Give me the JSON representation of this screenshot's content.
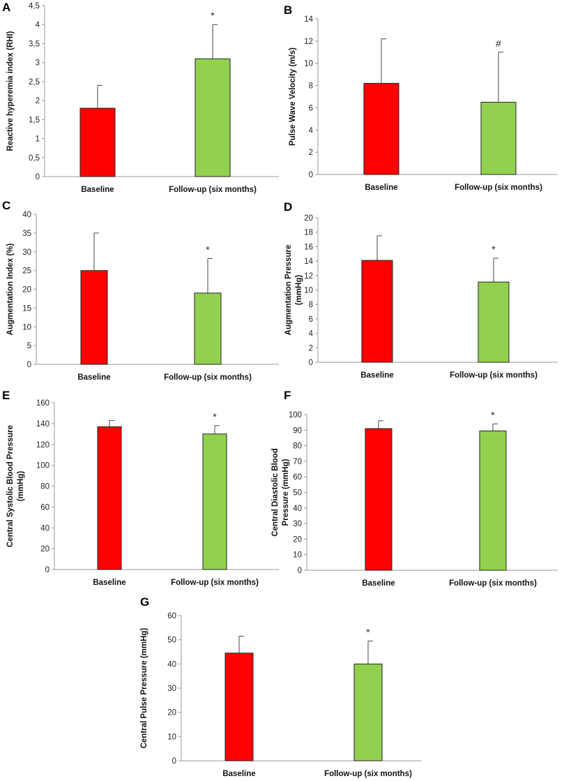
{
  "chart_data": [
    {
      "panel": "A",
      "type": "bar",
      "categories": [
        "Baseline",
        "Follow-up (six months)"
      ],
      "values": [
        1.8,
        3.1
      ],
      "errors": [
        0.6,
        0.9
      ],
      "colors": [
        "#ff0000",
        "#92d050"
      ],
      "annotations": [
        "",
        "*"
      ],
      "ylabel": [
        "Reactive hyperemia index (RHI)"
      ],
      "ylim": [
        0,
        4.5
      ],
      "yticks": [
        "0",
        "0,5",
        "1",
        "1,5",
        "2",
        "2,5",
        "3",
        "3,5",
        "4",
        "4,5"
      ]
    },
    {
      "panel": "B",
      "type": "bar",
      "categories": [
        "Baseline",
        "Follow-up (six months)"
      ],
      "values": [
        8.2,
        6.5
      ],
      "errors": [
        4.0,
        4.5
      ],
      "colors": [
        "#ff0000",
        "#92d050"
      ],
      "annotations": [
        "",
        "#"
      ],
      "ylabel": [
        "Pulse Wave Velocity (m/s)"
      ],
      "ylim": [
        0,
        14
      ],
      "yticks": [
        "0",
        "2",
        "4",
        "6",
        "8",
        "10",
        "12",
        "14"
      ]
    },
    {
      "panel": "C",
      "type": "bar",
      "categories": [
        "Baseline",
        "Follow-up (six months)"
      ],
      "values": [
        25,
        19
      ],
      "errors": [
        10,
        9.2
      ],
      "colors": [
        "#ff0000",
        "#92d050"
      ],
      "annotations": [
        "",
        "*"
      ],
      "ylabel": [
        "Augmentation Index (%)"
      ],
      "ylim": [
        0,
        40
      ],
      "yticks": [
        "0",
        "5",
        "10",
        "15",
        "20",
        "25",
        "30",
        "35",
        "40"
      ]
    },
    {
      "panel": "D",
      "type": "bar",
      "categories": [
        "Baseline",
        "Follow-up (six months)"
      ],
      "values": [
        14.1,
        11.1
      ],
      "errors": [
        3.4,
        3.3
      ],
      "colors": [
        "#ff0000",
        "#92d050"
      ],
      "annotations": [
        "",
        "*"
      ],
      "ylabel": [
        "Augmentation Pressure",
        "(mmHg)"
      ],
      "ylim": [
        0,
        20
      ],
      "yticks": [
        "0",
        "2",
        "4",
        "6",
        "8",
        "10",
        "12",
        "14",
        "16",
        "18",
        "20"
      ]
    },
    {
      "panel": "E",
      "type": "bar",
      "categories": [
        "Baseline",
        "Follow-up (six months)"
      ],
      "values": [
        137,
        130
      ],
      "errors": [
        6,
        8
      ],
      "colors": [
        "#ff0000",
        "#92d050"
      ],
      "annotations": [
        "",
        "*"
      ],
      "ylabel": [
        "Central Systolic Blood Pressure",
        "(mmHg)"
      ],
      "ylim": [
        0,
        160
      ],
      "yticks": [
        "0",
        "20",
        "40",
        "60",
        "80",
        "100",
        "120",
        "140",
        "160"
      ]
    },
    {
      "panel": "F",
      "type": "bar",
      "categories": [
        "Baseline",
        "Follow-up (six months)"
      ],
      "values": [
        91,
        89.5
      ],
      "errors": [
        5,
        4.5
      ],
      "colors": [
        "#ff0000",
        "#92d050"
      ],
      "annotations": [
        "",
        "*"
      ],
      "ylabel": [
        "Central Diastolic Blood",
        "Pressure (mmHg)"
      ],
      "ylim": [
        0,
        100
      ],
      "yticks": [
        "0",
        "10",
        "20",
        "30",
        "40",
        "50",
        "60",
        "70",
        "80",
        "90",
        "100"
      ]
    },
    {
      "panel": "G",
      "type": "bar",
      "categories": [
        "Baseline",
        "Follow-up (six months)"
      ],
      "values": [
        44.5,
        40
      ],
      "errors": [
        7,
        9.5
      ],
      "colors": [
        "#ff0000",
        "#92d050"
      ],
      "annotations": [
        "",
        "*"
      ],
      "ylabel": [
        "Central Pulse Pressure (mmHg)"
      ],
      "ylim": [
        0,
        60
      ],
      "yticks": [
        "0",
        "10",
        "20",
        "30",
        "40",
        "50",
        "60"
      ]
    }
  ]
}
